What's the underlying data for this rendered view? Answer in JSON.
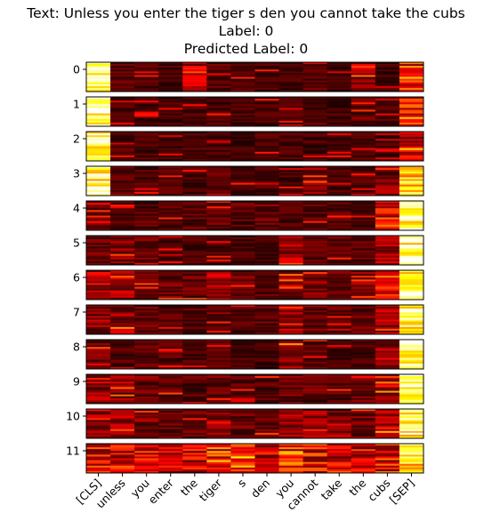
{
  "title": {
    "text_line": "Text: Unless you enter the tiger s den you cannot take the cubs",
    "label_line": "Label: 0",
    "predicted_line": "Predicted Label: 0"
  },
  "chart_data": {
    "type": "heatmap",
    "title": "Text: Unless you enter the tiger s den you cannot take the cubs\nLabel: 0\nPredicted Label: 0",
    "colormap": "hot",
    "panel_labels": [
      "0",
      "1",
      "2",
      "3",
      "4",
      "5",
      "6",
      "7",
      "8",
      "9",
      "10",
      "11"
    ],
    "tokens": [
      "[CLS]",
      "unless",
      "you",
      "enter",
      "the",
      "tiger",
      "s",
      "den",
      "you",
      "cannot",
      "take",
      "the",
      "cubs",
      "[SEP]"
    ],
    "rows_per_panel": 16,
    "value_range": [
      0,
      1
    ],
    "column_intensity": [
      [
        0.95,
        0.12,
        0.12,
        0.1,
        0.3,
        0.12,
        0.12,
        0.1,
        0.1,
        0.12,
        0.08,
        0.22,
        0.1,
        0.4
      ],
      [
        0.95,
        0.1,
        0.1,
        0.1,
        0.1,
        0.1,
        0.1,
        0.1,
        0.1,
        0.12,
        0.1,
        0.15,
        0.1,
        0.35
      ],
      [
        0.98,
        0.1,
        0.1,
        0.1,
        0.1,
        0.1,
        0.1,
        0.1,
        0.1,
        0.1,
        0.1,
        0.1,
        0.1,
        0.3
      ],
      [
        0.9,
        0.14,
        0.1,
        0.12,
        0.1,
        0.12,
        0.1,
        0.1,
        0.1,
        0.18,
        0.1,
        0.12,
        0.18,
        0.8
      ],
      [
        0.15,
        0.12,
        0.12,
        0.12,
        0.12,
        0.15,
        0.12,
        0.15,
        0.12,
        0.12,
        0.12,
        0.12,
        0.35,
        0.98
      ],
      [
        0.15,
        0.18,
        0.14,
        0.1,
        0.1,
        0.1,
        0.1,
        0.1,
        0.22,
        0.12,
        0.12,
        0.12,
        0.22,
        0.95
      ],
      [
        0.25,
        0.22,
        0.14,
        0.15,
        0.14,
        0.22,
        0.14,
        0.12,
        0.18,
        0.18,
        0.14,
        0.18,
        0.3,
        0.95
      ],
      [
        0.2,
        0.22,
        0.14,
        0.12,
        0.12,
        0.15,
        0.12,
        0.12,
        0.22,
        0.15,
        0.12,
        0.14,
        0.22,
        0.95
      ],
      [
        0.15,
        0.12,
        0.12,
        0.12,
        0.1,
        0.12,
        0.1,
        0.1,
        0.22,
        0.12,
        0.1,
        0.12,
        0.22,
        0.98
      ],
      [
        0.2,
        0.18,
        0.15,
        0.14,
        0.12,
        0.14,
        0.12,
        0.12,
        0.15,
        0.14,
        0.12,
        0.14,
        0.25,
        0.98
      ],
      [
        0.22,
        0.2,
        0.18,
        0.15,
        0.14,
        0.18,
        0.14,
        0.14,
        0.2,
        0.2,
        0.16,
        0.16,
        0.28,
        0.92
      ],
      [
        0.35,
        0.3,
        0.3,
        0.28,
        0.3,
        0.4,
        0.35,
        0.28,
        0.42,
        0.35,
        0.3,
        0.3,
        0.38,
        0.85
      ]
    ],
    "grid": false,
    "legend": "none"
  }
}
